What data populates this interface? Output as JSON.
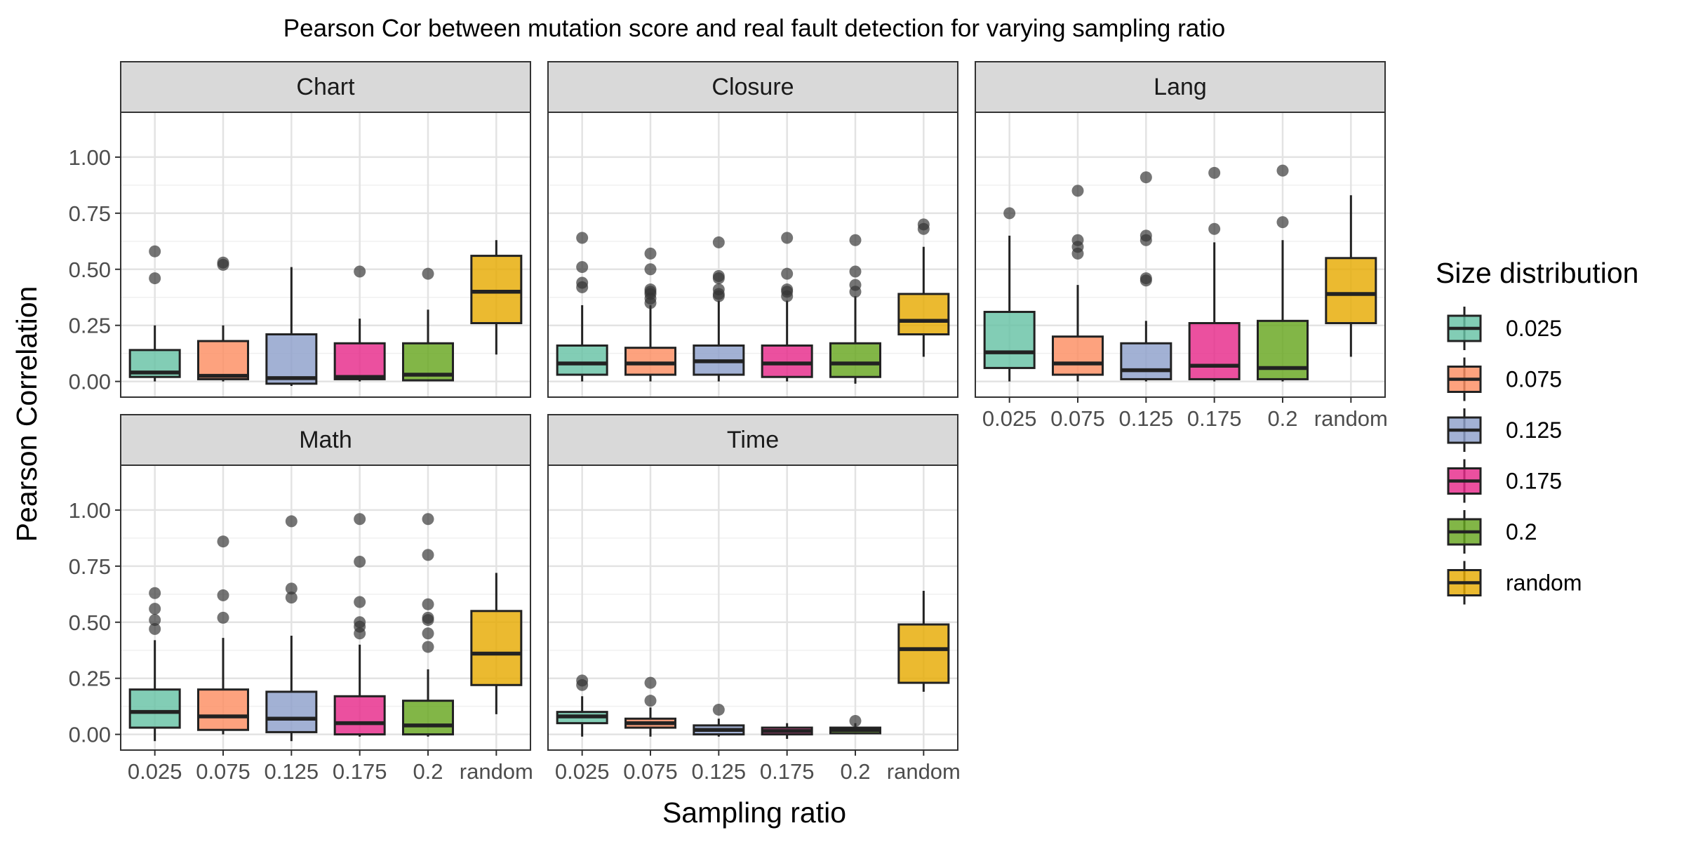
{
  "chart_data": {
    "type": "boxplot",
    "title": "Pearson Cor between mutation score and real fault detection for varying sampling ratio",
    "xlabel": "Sampling ratio",
    "ylabel": "Pearson Correlation",
    "categories": [
      "0.025",
      "0.075",
      "0.125",
      "0.175",
      "0.2",
      "random"
    ],
    "x_tick_labels": [
      "0.025",
      "0.075",
      "0.125",
      "0.175",
      "0.2",
      "random"
    ],
    "yticks": [
      0,
      0.25,
      0.5,
      0.75,
      1.0
    ],
    "ytick_labels": [
      "0.00",
      "0.25",
      "0.50",
      "0.75",
      "1.00"
    ],
    "ylim": [
      -0.07,
      1.2
    ],
    "grid": true,
    "legend": {
      "title": "Size distribution",
      "position": "right",
      "entries": [
        "0.025",
        "0.075",
        "0.125",
        "0.175",
        "0.2",
        "random"
      ]
    },
    "colors": [
      "#66C2A5",
      "#FC8D62",
      "#8DA0CB",
      "#E7298A",
      "#66A61E",
      "#E6AB02"
    ],
    "panels": [
      {
        "name": "Chart",
        "boxes": [
          {
            "category": "0.025",
            "lower_whisker": 0.0,
            "q1": 0.02,
            "median": 0.04,
            "q3": 0.14,
            "upper_whisker": 0.25,
            "outliers": [
              0.46,
              0.58
            ]
          },
          {
            "category": "0.075",
            "lower_whisker": 0.0,
            "q1": 0.01,
            "median": 0.025,
            "q3": 0.18,
            "upper_whisker": 0.25,
            "outliers": [
              0.52,
              0.53
            ]
          },
          {
            "category": "0.125",
            "lower_whisker": -0.02,
            "q1": -0.01,
            "median": 0.015,
            "q3": 0.21,
            "upper_whisker": 0.51,
            "outliers": []
          },
          {
            "category": "0.175",
            "lower_whisker": 0.0,
            "q1": 0.01,
            "median": 0.02,
            "q3": 0.17,
            "upper_whisker": 0.28,
            "outliers": [
              0.49
            ]
          },
          {
            "category": "0.2",
            "lower_whisker": 0.0,
            "q1": 0.005,
            "median": 0.03,
            "q3": 0.17,
            "upper_whisker": 0.32,
            "outliers": [
              0.48
            ]
          },
          {
            "category": "random",
            "lower_whisker": 0.12,
            "q1": 0.26,
            "median": 0.4,
            "q3": 0.56,
            "upper_whisker": 0.63,
            "outliers": []
          }
        ]
      },
      {
        "name": "Closure",
        "boxes": [
          {
            "category": "0.025",
            "lower_whisker": 0.0,
            "q1": 0.03,
            "median": 0.08,
            "q3": 0.16,
            "upper_whisker": 0.34,
            "outliers": [
              0.42,
              0.44,
              0.51,
              0.64
            ]
          },
          {
            "category": "0.075",
            "lower_whisker": 0.0,
            "q1": 0.03,
            "median": 0.08,
            "q3": 0.15,
            "upper_whisker": 0.34,
            "outliers": [
              0.35,
              0.37,
              0.39,
              0.4,
              0.41,
              0.5,
              0.57
            ]
          },
          {
            "category": "0.125",
            "lower_whisker": 0.0,
            "q1": 0.03,
            "median": 0.09,
            "q3": 0.16,
            "upper_whisker": 0.36,
            "outliers": [
              0.38,
              0.39,
              0.41,
              0.46,
              0.47,
              0.62
            ]
          },
          {
            "category": "0.175",
            "lower_whisker": 0.0,
            "q1": 0.02,
            "median": 0.08,
            "q3": 0.16,
            "upper_whisker": 0.36,
            "outliers": [
              0.38,
              0.4,
              0.41,
              0.48,
              0.64
            ]
          },
          {
            "category": "0.2",
            "lower_whisker": -0.01,
            "q1": 0.02,
            "median": 0.08,
            "q3": 0.17,
            "upper_whisker": 0.38,
            "outliers": [
              0.4,
              0.43,
              0.49,
              0.63
            ]
          },
          {
            "category": "random",
            "lower_whisker": 0.11,
            "q1": 0.21,
            "median": 0.27,
            "q3": 0.39,
            "upper_whisker": 0.6,
            "outliers": [
              0.68,
              0.7
            ]
          }
        ]
      },
      {
        "name": "Lang",
        "boxes": [
          {
            "category": "0.025",
            "lower_whisker": 0.0,
            "q1": 0.06,
            "median": 0.13,
            "q3": 0.31,
            "upper_whisker": 0.65,
            "outliers": [
              0.75
            ]
          },
          {
            "category": "0.075",
            "lower_whisker": 0.0,
            "q1": 0.03,
            "median": 0.08,
            "q3": 0.2,
            "upper_whisker": 0.43,
            "outliers": [
              0.57,
              0.6,
              0.63,
              0.85
            ]
          },
          {
            "category": "0.125",
            "lower_whisker": 0.0,
            "q1": 0.01,
            "median": 0.05,
            "q3": 0.17,
            "upper_whisker": 0.27,
            "outliers": [
              0.45,
              0.46,
              0.63,
              0.65,
              0.91
            ]
          },
          {
            "category": "0.175",
            "lower_whisker": 0.0,
            "q1": 0.01,
            "median": 0.07,
            "q3": 0.26,
            "upper_whisker": 0.62,
            "outliers": [
              0.68,
              0.93
            ]
          },
          {
            "category": "0.2",
            "lower_whisker": 0.0,
            "q1": 0.01,
            "median": 0.06,
            "q3": 0.27,
            "upper_whisker": 0.63,
            "outliers": [
              0.71,
              0.94
            ]
          },
          {
            "category": "random",
            "lower_whisker": 0.11,
            "q1": 0.26,
            "median": 0.39,
            "q3": 0.55,
            "upper_whisker": 0.83,
            "outliers": []
          }
        ]
      },
      {
        "name": "Math",
        "boxes": [
          {
            "category": "0.025",
            "lower_whisker": -0.03,
            "q1": 0.03,
            "median": 0.1,
            "q3": 0.2,
            "upper_whisker": 0.42,
            "outliers": [
              0.47,
              0.51,
              0.56,
              0.63
            ]
          },
          {
            "category": "0.075",
            "lower_whisker": 0.0,
            "q1": 0.02,
            "median": 0.08,
            "q3": 0.2,
            "upper_whisker": 0.43,
            "outliers": [
              0.52,
              0.62,
              0.86
            ]
          },
          {
            "category": "0.125",
            "lower_whisker": -0.03,
            "q1": 0.01,
            "median": 0.07,
            "q3": 0.19,
            "upper_whisker": 0.44,
            "outliers": [
              0.61,
              0.65,
              0.95
            ]
          },
          {
            "category": "0.175",
            "lower_whisker": -0.01,
            "q1": 0.0,
            "median": 0.05,
            "q3": 0.17,
            "upper_whisker": 0.4,
            "outliers": [
              0.45,
              0.48,
              0.5,
              0.59,
              0.77,
              0.96
            ]
          },
          {
            "category": "0.2",
            "lower_whisker": -0.01,
            "q1": 0.0,
            "median": 0.04,
            "q3": 0.15,
            "upper_whisker": 0.29,
            "outliers": [
              0.39,
              0.45,
              0.51,
              0.52,
              0.58,
              0.8,
              0.96
            ]
          },
          {
            "category": "random",
            "lower_whisker": 0.09,
            "q1": 0.22,
            "median": 0.36,
            "q3": 0.55,
            "upper_whisker": 0.72,
            "outliers": []
          }
        ]
      },
      {
        "name": "Time",
        "boxes": [
          {
            "category": "0.025",
            "lower_whisker": -0.01,
            "q1": 0.05,
            "median": 0.08,
            "q3": 0.1,
            "upper_whisker": 0.17,
            "outliers": [
              0.22,
              0.24
            ]
          },
          {
            "category": "0.075",
            "lower_whisker": -0.01,
            "q1": 0.03,
            "median": 0.05,
            "q3": 0.07,
            "upper_whisker": 0.12,
            "outliers": [
              0.15,
              0.23
            ]
          },
          {
            "category": "0.125",
            "lower_whisker": -0.01,
            "q1": 0.0,
            "median": 0.02,
            "q3": 0.04,
            "upper_whisker": 0.07,
            "outliers": [
              0.11
            ]
          },
          {
            "category": "0.175",
            "lower_whisker": -0.02,
            "q1": 0.0,
            "median": 0.015,
            "q3": 0.03,
            "upper_whisker": 0.05,
            "outliers": []
          },
          {
            "category": "0.2",
            "lower_whisker": 0.0,
            "q1": 0.005,
            "median": 0.02,
            "q3": 0.03,
            "upper_whisker": 0.05,
            "outliers": [
              0.06
            ]
          },
          {
            "category": "random",
            "lower_whisker": 0.19,
            "q1": 0.23,
            "median": 0.38,
            "q3": 0.49,
            "upper_whisker": 0.64,
            "outliers": []
          }
        ]
      }
    ]
  }
}
